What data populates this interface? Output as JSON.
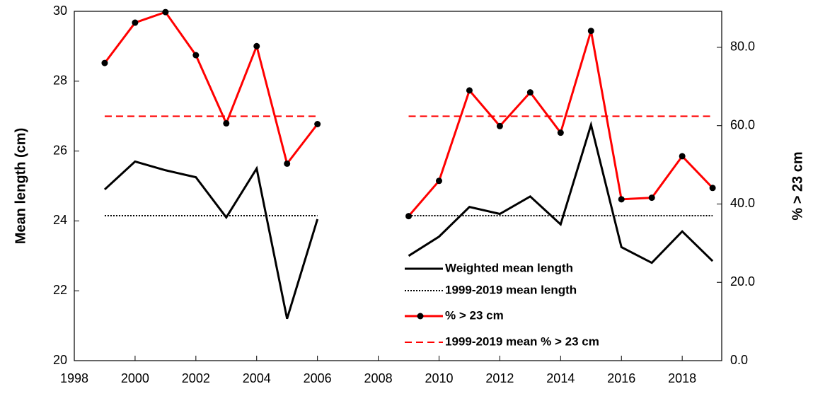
{
  "chart_data": {
    "type": "line",
    "x": [
      1999,
      2000,
      2001,
      2002,
      2003,
      2004,
      2005,
      2006,
      2007,
      2008,
      2009,
      2010,
      2011,
      2012,
      2013,
      2014,
      2015,
      2016,
      2017,
      2018,
      2019
    ],
    "xlim": [
      1998,
      2019.3
    ],
    "xticks": [
      1998,
      2000,
      2002,
      2004,
      2006,
      2008,
      2010,
      2012,
      2014,
      2016,
      2018
    ],
    "ylim": [
      20,
      30
    ],
    "yticks": [
      20,
      22,
      24,
      26,
      28,
      30
    ],
    "y2lim": [
      0,
      89.2
    ],
    "y2ticks": [
      {
        "value": 0,
        "label": "0.0"
      },
      {
        "value": 20,
        "label": "20.0"
      },
      {
        "value": 40,
        "label": "40.0"
      },
      {
        "value": 60,
        "label": "60.0"
      },
      {
        "value": 80,
        "label": "80.0"
      }
    ],
    "ylabel": "Mean length (cm)",
    "y2label": "% > 23 cm",
    "legend": "lower-center",
    "series": [
      {
        "name": "Weighted mean length",
        "color": "#000000",
        "style": "solid",
        "axis": "y",
        "values": [
          24.9,
          25.7,
          25.45,
          25.25,
          24.1,
          25.5,
          21.2,
          24.05,
          null,
          null,
          23.0,
          23.55,
          24.4,
          24.2,
          24.7,
          23.9,
          26.75,
          23.25,
          22.8,
          23.7,
          22.85
        ]
      },
      {
        "name": "1999-2019 mean length",
        "color": "#000000",
        "style": "dotted",
        "axis": "y",
        "values": [
          24.15,
          24.15,
          24.15,
          24.15,
          24.15,
          24.15,
          24.15,
          24.15,
          null,
          null,
          24.15,
          24.15,
          24.15,
          24.15,
          24.15,
          24.15,
          24.15,
          24.15,
          24.15,
          24.15,
          24.15
        ]
      },
      {
        "name": "% > 23 cm",
        "color": "#ff0000",
        "style": "solid",
        "marker": "circle",
        "axis": "y2",
        "values": [
          76.0,
          86.3,
          89.0,
          78.0,
          60.6,
          80.3,
          50.3,
          60.4,
          null,
          null,
          36.9,
          45.9,
          69.0,
          59.9,
          68.5,
          58.2,
          84.2,
          41.2,
          41.6,
          52.2,
          44.1
        ]
      },
      {
        "name": "1999-2019 mean % > 23 cm",
        "color": "#ff0000",
        "style": "dashed",
        "axis": "y2",
        "values": [
          62.4,
          62.4,
          62.4,
          62.4,
          62.4,
          62.4,
          62.4,
          62.4,
          null,
          null,
          62.4,
          62.4,
          62.4,
          62.4,
          62.4,
          62.4,
          62.4,
          62.4,
          62.4,
          62.4,
          62.4
        ]
      }
    ]
  }
}
